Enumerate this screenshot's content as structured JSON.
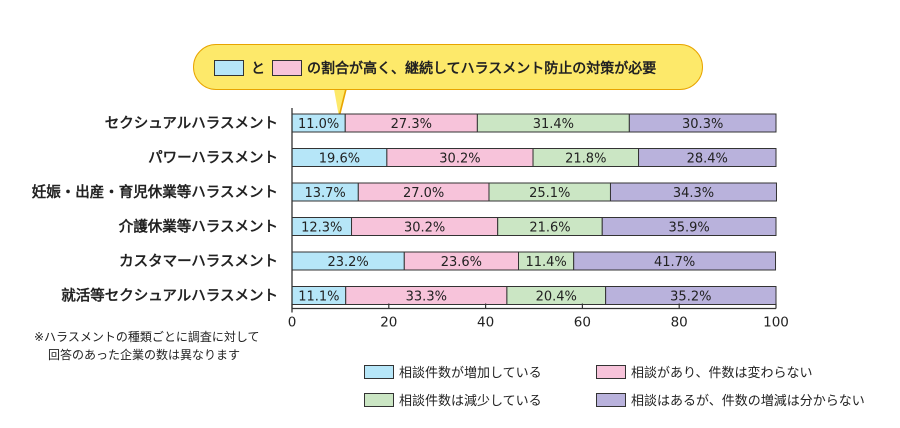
{
  "callout": {
    "connector": "と",
    "text": "の割合が高く、継続してハラスメント防止の対策が必要",
    "swatch_colors": [
      "#b6e6f8",
      "#f7c3da"
    ]
  },
  "footnote": {
    "line1": "※ハラスメントの種類ごとに調査に対して",
    "line2": "回答のあった企業の数は異なります"
  },
  "legend": [
    {
      "label": "相談件数が増加している",
      "color": "#b6e6f8"
    },
    {
      "label": "相談があり、件数は変わらない",
      "color": "#f7c3da"
    },
    {
      "label": "相談件数は減少している",
      "color": "#cbe6c4"
    },
    {
      "label": "相談はあるが、件数の増減は分からない",
      "color": "#b9b2dc"
    }
  ],
  "chart_data": {
    "type": "bar",
    "orientation": "horizontal",
    "stacked": true,
    "categories": [
      "セクシュアルハラスメント",
      "パワーハラスメント",
      "妊娠・出産・育児休業等ハラスメント",
      "介護休業等ハラスメント",
      "カスタマーハラスメント",
      "就活等セクシュアルハラスメント"
    ],
    "series": [
      {
        "name": "相談件数が増加している",
        "color": "#b6e6f8",
        "values": [
          11.0,
          19.6,
          13.7,
          12.3,
          23.2,
          11.1
        ],
        "labels": [
          "11.0%",
          "19.6%",
          "13.7%",
          "12.3%",
          "23.2%",
          "11.1%"
        ]
      },
      {
        "name": "相談があり、件数は変わらない",
        "color": "#f7c3da",
        "values": [
          27.3,
          30.2,
          27.0,
          30.2,
          23.6,
          33.3
        ],
        "labels": [
          "27.3%",
          "30.2%",
          "27.0%",
          "30.2%",
          "23.6%",
          "33.3%"
        ]
      },
      {
        "name": "相談件数は減少している",
        "color": "#cbe6c4",
        "values": [
          31.4,
          21.8,
          25.1,
          21.6,
          11.4,
          20.4
        ],
        "labels": [
          "31.4%",
          "21.8%",
          "25.1%",
          "21.6%",
          "11.4%",
          "20.4%"
        ]
      },
      {
        "name": "相談はあるが、件数の増減は分からない",
        "color": "#b9b2dc",
        "values": [
          30.3,
          28.4,
          34.3,
          35.9,
          41.7,
          35.2
        ],
        "labels": [
          "30.3%",
          "28.4%",
          "34.3%",
          "35.9%",
          "41.7%",
          "35.2%"
        ]
      }
    ],
    "xlim": [
      0,
      100
    ],
    "xticks": [
      "0",
      "20",
      "40",
      "60",
      "80",
      "100"
    ],
    "grid": false,
    "legend_position": "bottom-right"
  }
}
